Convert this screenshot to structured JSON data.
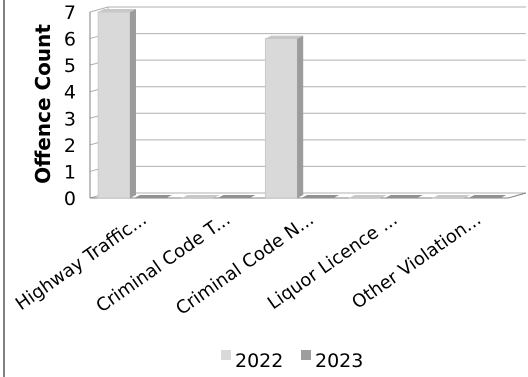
{
  "chart_data": {
    "type": "bar",
    "ylabel": "Offence Count",
    "ylim": [
      0,
      7
    ],
    "yticks": [
      "0",
      "1",
      "2",
      "3",
      "4",
      "5",
      "6",
      "7"
    ],
    "categories": [
      "Highway Traffic...",
      "Criminal Code T...",
      "Criminal Code N...",
      "Liquor Licence ...",
      "Other Violation..."
    ],
    "series": [
      {
        "name": "2022",
        "values": [
          7,
          0,
          6,
          0,
          0
        ],
        "color": "#d9d9d9"
      },
      {
        "name": "2023",
        "values": [
          0,
          0,
          0,
          0,
          0
        ],
        "color": "#9e9e9e"
      }
    ],
    "grid": true,
    "legend": "bottom"
  }
}
